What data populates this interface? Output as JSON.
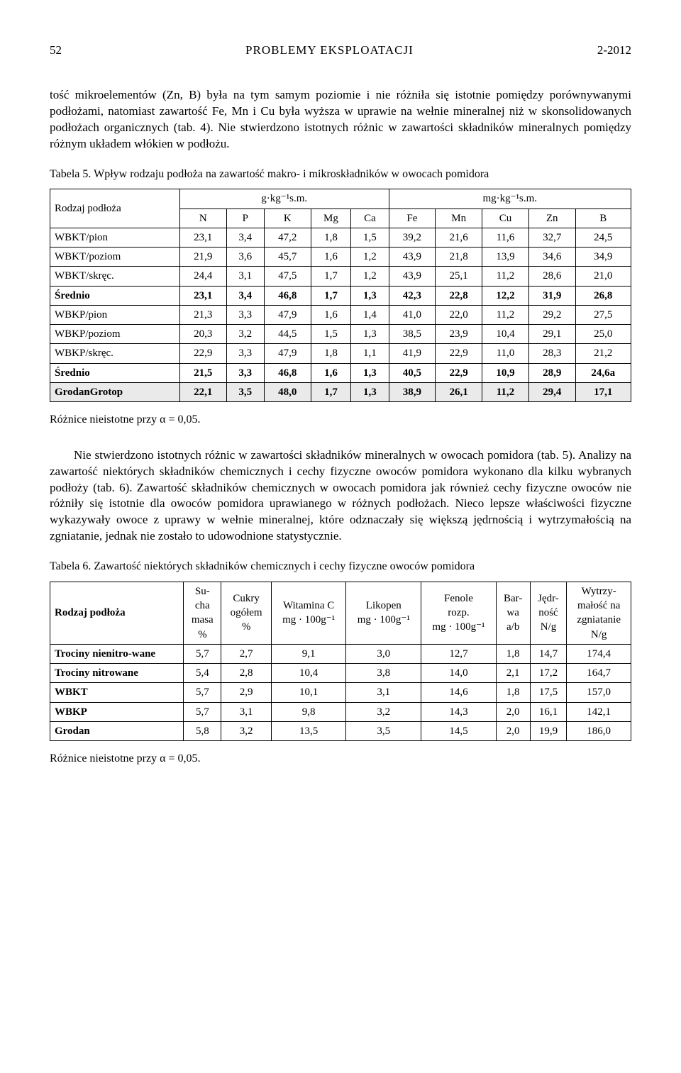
{
  "header": {
    "page": "52",
    "title": "PROBLEMY  EKSPLOATACJI",
    "issue": "2-2012"
  },
  "intro_paragraph": "tość mikroelementów (Zn, B) była na tym samym poziomie i nie różniła się istotnie pomiędzy porównywanymi podłożami, natomiast zawartość Fe, Mn i Cu była wyższa w uprawie na wełnie mineralnej niż w skonsolidowanych podłożach organicznych (tab. 4). Nie stwierdzono istotnych różnic w zawartości składników mineralnych pomiędzy różnym układem włókien w podłożu.",
  "table5": {
    "caption": "Tabela 5. Wpływ rodzaju podłoża na zawartość makro- i mikroskładników w owocach pomidora",
    "row_header_label": "Rodzaj podłoża",
    "unit_left": "g·kg⁻¹s.m.",
    "unit_right": "mg·kg⁻¹s.m.",
    "cols": [
      "N",
      "P",
      "K",
      "Mg",
      "Ca",
      "Fe",
      "Mn",
      "Cu",
      "Zn",
      "B"
    ],
    "rows": [
      {
        "label": "WBKT/pion",
        "v": [
          "23,1",
          "3,4",
          "47,2",
          "1,8",
          "1,5",
          "39,2",
          "21,6",
          "11,6",
          "32,7",
          "24,5"
        ]
      },
      {
        "label": "WBKT/poziom",
        "v": [
          "21,9",
          "3,6",
          "45,7",
          "1,6",
          "1,2",
          "43,9",
          "21,8",
          "13,9",
          "34,6",
          "34,9"
        ]
      },
      {
        "label": "WBKT/skręc.",
        "v": [
          "24,4",
          "3,1",
          "47,5",
          "1,7",
          "1,2",
          "43,9",
          "25,1",
          "11,2",
          "28,6",
          "21,0"
        ]
      },
      {
        "label": "Średnio",
        "v": [
          "23,1",
          "3,4",
          "46,8",
          "1,7",
          "1,3",
          "42,3",
          "22,8",
          "12,2",
          "31,9",
          "26,8"
        ],
        "bold": true
      },
      {
        "label": "WBKP/pion",
        "v": [
          "21,3",
          "3,3",
          "47,9",
          "1,6",
          "1,4",
          "41,0",
          "22,0",
          "11,2",
          "29,2",
          "27,5"
        ]
      },
      {
        "label": "WBKP/poziom",
        "v": [
          "20,3",
          "3,2",
          "44,5",
          "1,5",
          "1,3",
          "38,5",
          "23,9",
          "10,4",
          "29,1",
          "25,0"
        ]
      },
      {
        "label": "WBKP/skręc.",
        "v": [
          "22,9",
          "3,3",
          "47,9",
          "1,8",
          "1,1",
          "41,9",
          "22,9",
          "11,0",
          "28,3",
          "21,2"
        ]
      },
      {
        "label": "Średnio",
        "v": [
          "21,5",
          "3,3",
          "46,8",
          "1,6",
          "1,3",
          "40,5",
          "22,9",
          "10,9",
          "28,9",
          "24,6a"
        ],
        "bold": true
      },
      {
        "label": "GrodanGrotop",
        "v": [
          "22,1",
          "3,5",
          "48,0",
          "1,7",
          "1,3",
          "38,9",
          "26,1",
          "11,2",
          "29,4",
          "17,1"
        ],
        "highlight": true
      }
    ],
    "footnote": "Różnice nieistotne przy α = 0,05."
  },
  "mid_paragraph": "Nie stwierdzono istotnych różnic w zawartości składników mineralnych w owocach pomidora (tab. 5). Analizy na zawartość niektórych składników chemicznych i cechy fizyczne owoców pomidora wykonano dla kilku wybranych podłoży (tab. 6). Zawartość składników chemicznych w owocach pomidora jak również cechy fizyczne owoców nie różniły się istotnie dla owoców pomidora uprawianego w różnych podłożach. Nieco lepsze właściwości fizyczne wykazywały owoce z uprawy w wełnie mineralnej, które odznaczały się większą jędrnością i wytrzymałością na zgniatanie, jednak nie zostało to udowodnione statystycznie.",
  "table6": {
    "caption": "Tabela 6. Zawartość niektórych składników chemicznych i cechy fizyczne owoców pomidora",
    "headers": [
      "Rodzaj podłoża",
      "Su-\ncha\nmasa\n%",
      "Cukry\nogółem\n%",
      "Witamina C\nmg · 100g⁻¹",
      "Likopen\nmg · 100g⁻¹",
      "Fenole\nrozp.\nmg · 100g⁻¹",
      "Bar-\nwa\na/b",
      "Jędr-\nność\nN/g",
      "Wytrzy-\nmałość na\nzgniatanie\nN/g"
    ],
    "rows": [
      {
        "label": "Trociny nienitro-wane",
        "v": [
          "5,7",
          "2,7",
          "9,1",
          "3,0",
          "12,7",
          "1,8",
          "14,7",
          "174,4"
        ]
      },
      {
        "label": "Trociny nitrowane",
        "v": [
          "5,4",
          "2,8",
          "10,4",
          "3,8",
          "14,0",
          "2,1",
          "17,2",
          "164,7"
        ]
      },
      {
        "label": "WBKT",
        "v": [
          "5,7",
          "2,9",
          "10,1",
          "3,1",
          "14,6",
          "1,8",
          "17,5",
          "157,0"
        ]
      },
      {
        "label": "WBKP",
        "v": [
          "5,7",
          "3,1",
          "9,8",
          "3,2",
          "14,3",
          "2,0",
          "16,1",
          "142,1"
        ]
      },
      {
        "label": "Grodan",
        "v": [
          "5,8",
          "3,2",
          "13,5",
          "3,5",
          "14,5",
          "2,0",
          "19,9",
          "186,0"
        ]
      }
    ],
    "footnote": "Różnice nieistotne przy α = 0,05."
  }
}
